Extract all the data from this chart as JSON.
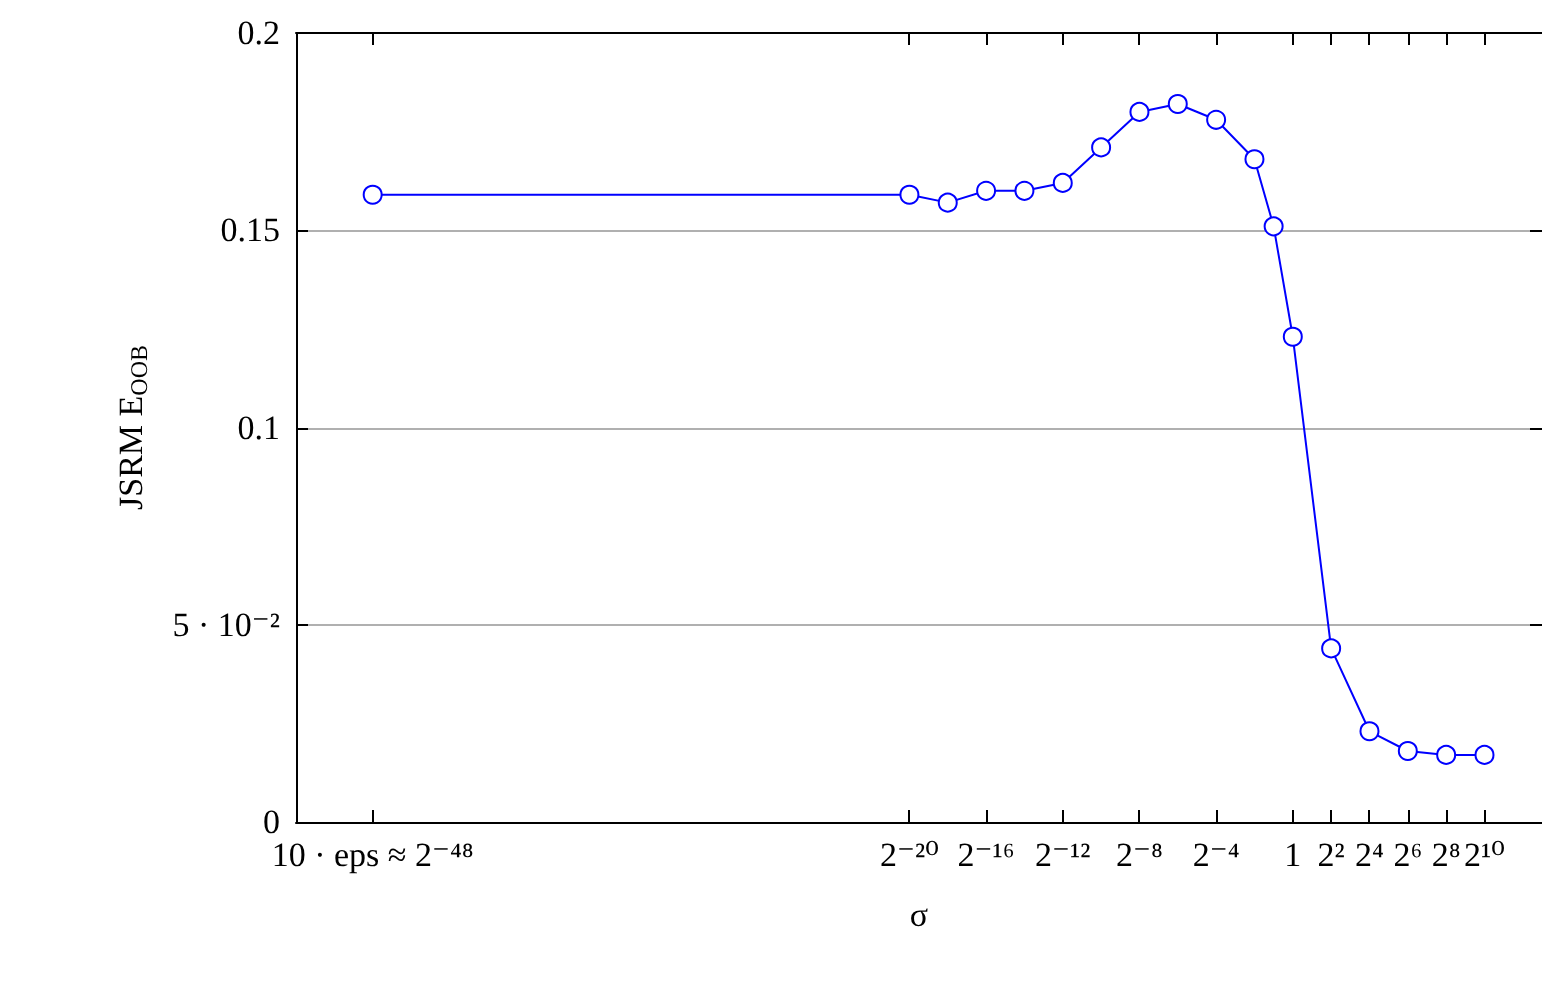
{
  "chart_data": {
    "type": "line",
    "xlabel": "σ",
    "ylabel": "JSRM E$_{OOB}$",
    "log": "x",
    "x": [
      3.552713678800501e-15,
      9.5367431640625e-07,
      3.814697265625e-06,
      1.52587890625e-05,
      6.103515625e-05,
      0.000244140625,
      0.0009765625,
      0.00390625,
      0.015625,
      0.0625,
      0.25,
      0.5,
      1,
      4,
      16,
      64,
      256,
      1024
    ],
    "series": [
      {
        "color": "#0000ff",
        "values": [
          0.159,
          0.159,
          0.157,
          0.16,
          0.16,
          0.162,
          0.171,
          0.18,
          0.182,
          0.178,
          0.168,
          0.151,
          0.123,
          0.044,
          0.023,
          0.018,
          0.017,
          0.017
        ]
      }
    ],
    "xlim": [
      2.220446049250313e-16,
      8192
    ],
    "xticks": [
      {
        "value": 3.552713678800501e-15,
        "label": "10 · eps ≈ 2⁻⁴⁸"
      },
      {
        "value": 9.5367431640625e-07,
        "label": "2⁻²⁰"
      },
      {
        "value": 1.52587890625e-05,
        "label": "2⁻¹⁶"
      },
      {
        "value": 0.000244140625,
        "label": "2⁻¹²"
      },
      {
        "value": 0.00390625,
        "label": "2⁻⁸"
      },
      {
        "value": 0.0625,
        "label": "2⁻⁴"
      },
      1,
      {
        "value": 4,
        "label": "2²"
      },
      {
        "value": 16,
        "label": "2⁴"
      },
      {
        "value": 64,
        "label": "2⁶"
      },
      {
        "value": 256,
        "label": "2⁸"
      },
      {
        "value": 1024,
        "label": "2¹⁰"
      }
    ],
    "ylim": [
      0,
      0.2
    ],
    "yticks": [
      0,
      {
        "value": 0.05,
        "label": "5 · 10⁻²"
      },
      0.1,
      0.15,
      0.2
    ],
    "grid": "y",
    "marker": "circle",
    "line_style": "solid"
  }
}
